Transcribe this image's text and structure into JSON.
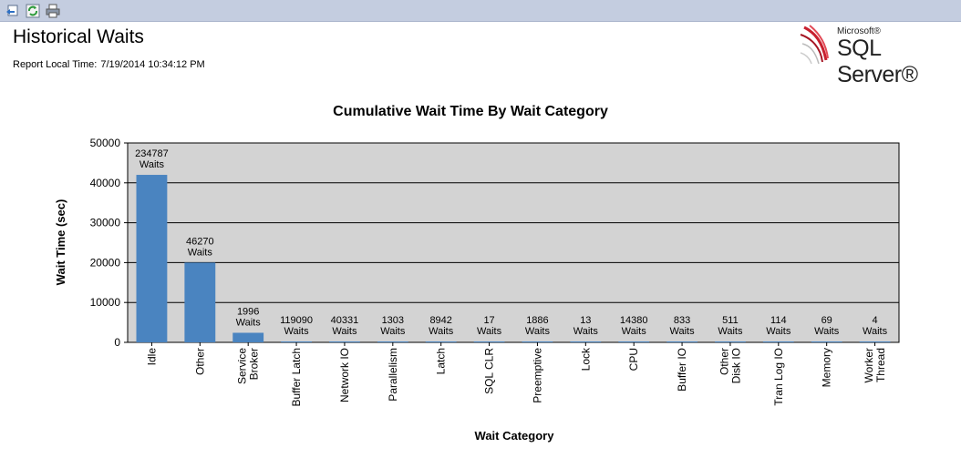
{
  "toolbar": {
    "buttons": [
      {
        "icon": "back-icon",
        "name": "back-button"
      },
      {
        "icon": "refresh-icon",
        "name": "refresh-button"
      },
      {
        "icon": "print-icon",
        "name": "print-button"
      }
    ]
  },
  "header": {
    "title": "Historical Waits",
    "time_label": "Report Local Time:",
    "time_value": "7/19/2014 10:34:12 PM"
  },
  "logo": {
    "brand_small": "Microsoft®",
    "brand_large": "SQL Server®"
  },
  "chart_data": {
    "type": "bar",
    "title": "Cumulative Wait Time By Wait Category",
    "xlabel": "Wait Category",
    "ylabel": "Wait Time (sec)",
    "ylim": [
      0,
      50000
    ],
    "yticks": [
      0,
      10000,
      20000,
      30000,
      40000,
      50000
    ],
    "grid": true,
    "bar_color": "#4a84c0",
    "plot_background": "#d3d3d3",
    "categories": [
      [
        "Idle"
      ],
      [
        "Other"
      ],
      [
        "Service",
        "Broker"
      ],
      [
        "Buffer Latch"
      ],
      [
        "Network IO"
      ],
      [
        "Parallelism"
      ],
      [
        "Latch"
      ],
      [
        "SQL CLR"
      ],
      [
        "Preemptive"
      ],
      [
        "Lock"
      ],
      [
        "CPU"
      ],
      [
        "Buffer IO"
      ],
      [
        "Other",
        "Disk IO"
      ],
      [
        "Tran Log IO"
      ],
      [
        "Memory"
      ],
      [
        "Worker",
        "Thread"
      ]
    ],
    "values": [
      42000,
      20000,
      2400,
      150,
      100,
      80,
      60,
      40,
      60,
      30,
      40,
      50,
      30,
      20,
      20,
      5
    ],
    "data_labels": [
      [
        "234787",
        "Waits"
      ],
      [
        "46270",
        "Waits"
      ],
      [
        "1996",
        "Waits"
      ],
      [
        "119090",
        "Waits"
      ],
      [
        "40331",
        "Waits"
      ],
      [
        "1303",
        "Waits"
      ],
      [
        "8942",
        "Waits"
      ],
      [
        "17",
        "Waits"
      ],
      [
        "1886",
        "Waits"
      ],
      [
        "13",
        "Waits"
      ],
      [
        "14380",
        "Waits"
      ],
      [
        "833",
        "Waits"
      ],
      [
        "511",
        "Waits"
      ],
      [
        "114",
        "Waits"
      ],
      [
        "69",
        "Waits"
      ],
      [
        "4",
        "Waits"
      ]
    ]
  }
}
